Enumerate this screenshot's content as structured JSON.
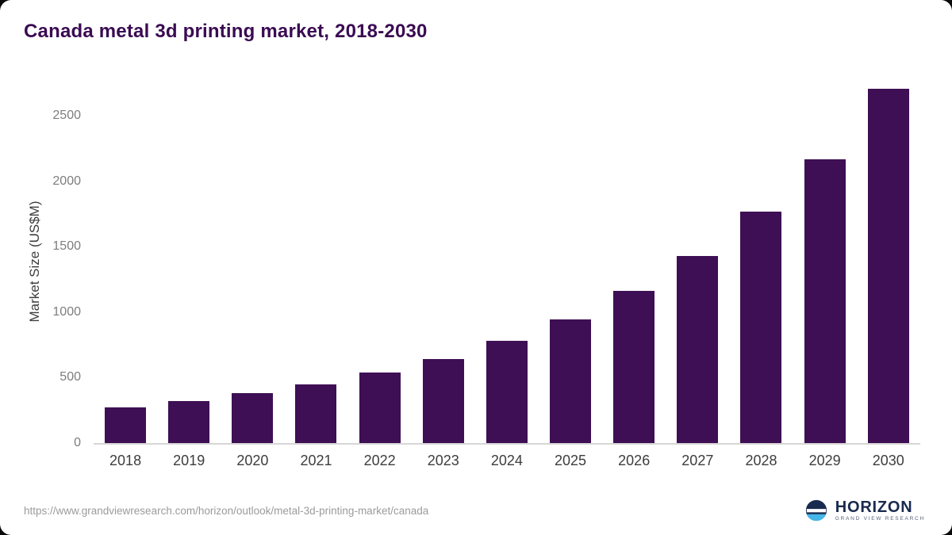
{
  "chart_data": {
    "type": "bar",
    "title": "Canada metal 3d printing market, 2018-2030",
    "categories": [
      "2018",
      "2019",
      "2020",
      "2021",
      "2022",
      "2023",
      "2024",
      "2025",
      "2026",
      "2027",
      "2028",
      "2029",
      "2030"
    ],
    "values": [
      270,
      320,
      380,
      450,
      540,
      645,
      780,
      945,
      1160,
      1430,
      1770,
      2170,
      2710
    ],
    "xlabel": "",
    "ylabel": "Market Size (US$M)",
    "ylim": [
      0,
      2780
    ],
    "yticks": [
      0,
      500,
      1000,
      1500,
      2000,
      2500
    ],
    "grid": false,
    "legend": "none",
    "bar_color": "#3e0f54"
  },
  "colors": {
    "title": "#3a0b52",
    "bar": "#3e0f54",
    "axis_line": "#d6d6d6",
    "y_tick_label": "#7d7d7d",
    "x_tick_label": "#3d3d3d",
    "background": "#ffffff",
    "brand_navy": "#182a4e",
    "brand_blue": "#45b6e8"
  },
  "footer": {
    "source_url": "https://www.grandviewresearch.com/horizon/outlook/metal-3d-printing-market/canada",
    "brand": {
      "name": "HORIZON",
      "subtitle": "GRAND VIEW RESEARCH"
    }
  }
}
